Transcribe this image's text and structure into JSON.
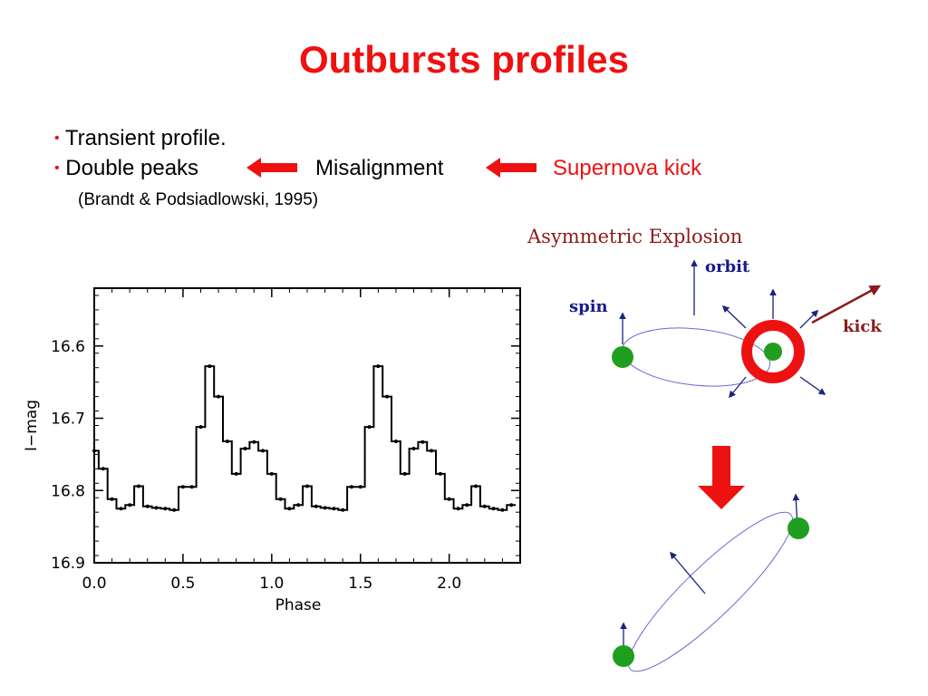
{
  "slide": {
    "title": "Outbursts profiles",
    "bullets": [
      {
        "marker": "•",
        "text": "Transient profile."
      },
      {
        "marker": "•",
        "text": "Double peaks",
        "text2": "Misalignment",
        "text3": "Supernova  kick"
      }
    ],
    "reference": "(Brandt & Podsiadlowski, 1995)",
    "colors": {
      "title": "#ee1111",
      "arrow": "#ee1111"
    },
    "icons": [
      "left-arrow-icon",
      "left-arrow-icon",
      "down-arrow-icon"
    ]
  },
  "diagram": {
    "title": "Asymmetric Explosion",
    "labels": {
      "orbit": "orbit",
      "spin": "spin",
      "kick": "kick"
    },
    "colors": {
      "title": "#8b1a1a",
      "label": "#1a1a8b",
      "arrow": "#1a237e",
      "star": "#1f9e1f",
      "ring": "#ee1111",
      "kick_arrow": "#8b1a1a",
      "orbit": "#6a6ad0"
    }
  },
  "chart_data": {
    "type": "line",
    "style": "step",
    "title": "",
    "xlabel": "Phase",
    "ylabel": "I−mag",
    "xlim": [
      0.0,
      2.4
    ],
    "ylim": [
      16.9,
      16.52
    ],
    "y_inverted": true,
    "xticks": [
      "0.0",
      "0.5",
      "1.0",
      "1.5",
      "2.0"
    ],
    "xtick_values": [
      0.0,
      0.5,
      1.0,
      1.5,
      2.0
    ],
    "yticks": [
      "16.6",
      "16.7",
      "16.8",
      "16.9"
    ],
    "ytick_values": [
      16.6,
      16.7,
      16.8,
      16.9
    ],
    "series": [
      {
        "x": [
          0.0,
          0.05,
          0.1,
          0.15,
          0.2,
          0.25,
          0.3,
          0.35,
          0.4,
          0.45,
          0.5,
          0.55,
          0.6,
          0.65,
          0.7,
          0.75,
          0.8,
          0.85,
          0.9,
          0.95,
          1.0,
          1.05,
          1.1,
          1.15,
          1.2,
          1.25,
          1.3,
          1.35,
          1.4,
          1.45,
          1.5,
          1.55,
          1.6,
          1.65,
          1.7,
          1.75,
          1.8,
          1.85,
          1.9,
          1.95,
          2.0,
          2.05,
          2.1,
          2.15,
          2.2,
          2.25,
          2.3,
          2.35
        ],
        "values": [
          16.745,
          16.77,
          16.812,
          16.825,
          16.82,
          16.794,
          16.822,
          16.824,
          16.825,
          16.827,
          16.795,
          16.795,
          16.712,
          16.628,
          16.67,
          16.732,
          16.777,
          16.742,
          16.733,
          16.745,
          16.777,
          16.812,
          16.825,
          16.82,
          16.794,
          16.822,
          16.824,
          16.825,
          16.827,
          16.795,
          16.795,
          16.712,
          16.628,
          16.67,
          16.732,
          16.777,
          16.742,
          16.733,
          16.745,
          16.777,
          16.812,
          16.825,
          16.82,
          16.794,
          16.822,
          16.825,
          16.827,
          16.82
        ]
      }
    ]
  }
}
